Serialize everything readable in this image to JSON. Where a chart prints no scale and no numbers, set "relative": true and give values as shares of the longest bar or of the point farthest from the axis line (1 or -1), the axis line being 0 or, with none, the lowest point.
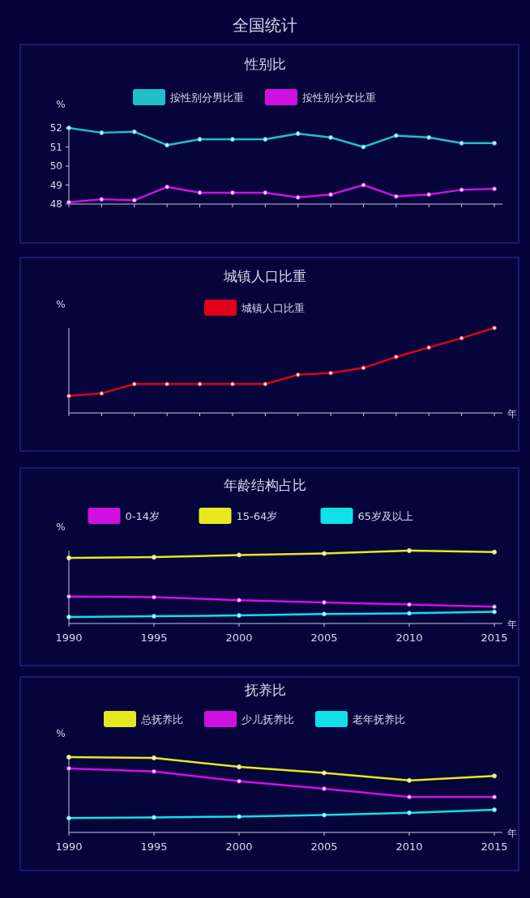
{
  "chart_data": [
    {
      "type": "line",
      "title": "性别比",
      "ylabel": "%",
      "annotations": [
        "全国统计"
      ],
      "categories": [
        null,
        null,
        null,
        null,
        null,
        null,
        null,
        null,
        null,
        null,
        null,
        null,
        null,
        null
      ],
      "ylim": [
        48,
        52
      ],
      "yticks": [
        48,
        49,
        50,
        51,
        52
      ],
      "legend": "top",
      "marker": "circle",
      "tick_labels": "y",
      "series": [
        {
          "name": "按性别分男比重",
          "color": "#20c0c8",
          "values": [
            52.0,
            51.75,
            51.8,
            51.1,
            51.4,
            51.4,
            51.4,
            51.7,
            51.5,
            51.0,
            51.6,
            51.5,
            51.2,
            51.2
          ]
        },
        {
          "name": "按性别分女比重",
          "color": "#d010e0",
          "values": [
            48.1,
            48.25,
            48.2,
            48.9,
            48.6,
            48.6,
            48.6,
            48.35,
            48.5,
            49.0,
            48.4,
            48.5,
            48.75,
            48.8
          ]
        }
      ]
    },
    {
      "type": "line",
      "title": "城镇人口比重",
      "ylabel": "%",
      "xlabel": "年",
      "relative": true,
      "categories": [
        null,
        null,
        null,
        null,
        null,
        null,
        null,
        null,
        null,
        null,
        null,
        null,
        null,
        null
      ],
      "legend": "top",
      "marker": "circle",
      "tick_labels": false,
      "series": [
        {
          "name": "城镇人口比重",
          "color": "#e00018",
          "values": [
            0.2,
            0.23,
            0.34,
            0.34,
            0.34,
            0.34,
            0.34,
            0.45,
            0.47,
            0.53,
            0.66,
            0.77,
            0.88,
            1
          ]
        }
      ]
    },
    {
      "type": "line",
      "title": "年龄结构占比",
      "ylabel": "%",
      "xlabel": "年",
      "relative": true,
      "categories": [
        "1990",
        "1995",
        "2000",
        "2005",
        "2010",
        "2015"
      ],
      "legend": "top",
      "marker": "circle",
      "tick_labels": "x",
      "series": [
        {
          "name": "0-14岁",
          "color": "#d010e0",
          "values": [
            0.37,
            0.36,
            0.32,
            0.29,
            0.26,
            0.23
          ]
        },
        {
          "name": "15-64岁",
          "color": "#e8e820",
          "values": [
            0.9,
            0.91,
            0.94,
            0.96,
            1,
            0.98
          ]
        },
        {
          "name": "65岁及以上",
          "color": "#10e0e8",
          "values": [
            0.09,
            0.1,
            0.11,
            0.13,
            0.14,
            0.16
          ]
        }
      ]
    },
    {
      "type": "line",
      "title": "抚养比",
      "ylabel": "%",
      "xlabel": "年",
      "relative": true,
      "categories": [
        "1990",
        "1995",
        "2000",
        "2005",
        "2010",
        "2015"
      ],
      "legend": "top",
      "marker": "circle",
      "tick_labels": "x",
      "series": [
        {
          "name": "总抚养比",
          "color": "#e8e820",
          "values": [
            1,
            0.99,
            0.87,
            0.79,
            0.69,
            0.75
          ]
        },
        {
          "name": "少儿抚养比",
          "color": "#d010e0",
          "values": [
            0.85,
            0.81,
            0.68,
            0.58,
            0.47,
            0.47
          ]
        },
        {
          "name": "老年抚养比",
          "color": "#10e0e8",
          "values": [
            0.19,
            0.2,
            0.21,
            0.23,
            0.26,
            0.3
          ]
        }
      ]
    }
  ]
}
